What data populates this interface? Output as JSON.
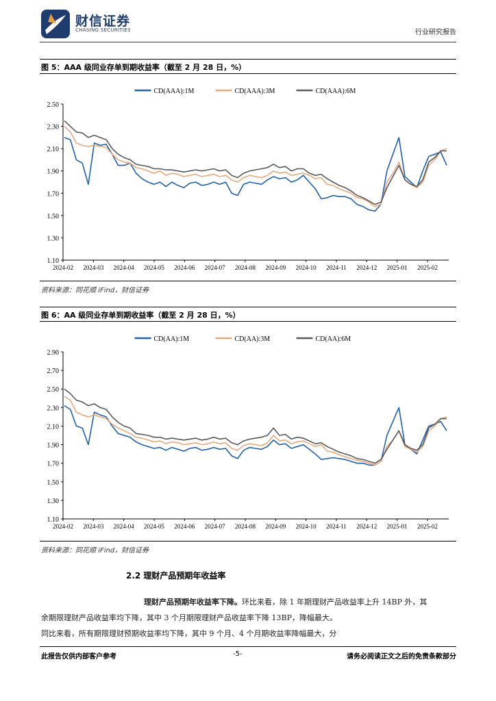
{
  "header": {
    "brand_cn": "财信证券",
    "brand_en": "CHASING SECURITIES",
    "report_type": "行业研究报告"
  },
  "figures": [
    {
      "title": "图 5：AAA 级同业存单到期收益率（截至 2 月 28 日，%）",
      "source": "资料来源：同花顺 iFind，财信证券"
    },
    {
      "title": "图 6：AA 级同业存单到期收益率（截至 2 月 28 日，%）",
      "source": "资料来源：同花顺 iFind，财信证券"
    }
  ],
  "chart_data": [
    {
      "type": "line",
      "title": "AAA 级同业存单到期收益率",
      "x_ticks": [
        "2024-02",
        "2024-03",
        "2024-04",
        "2024-05",
        "2024-06",
        "2024-07",
        "2024-08",
        "2024-09",
        "2024-10",
        "2024-11",
        "2024-12",
        "2025-01",
        "2025-02"
      ],
      "ylim": [
        1.1,
        2.5
      ],
      "y_ticks": [
        "1.10",
        "1.30",
        "1.50",
        "1.70",
        "1.90",
        "2.10",
        "2.30",
        "2.50"
      ],
      "legend_position": "top-center",
      "series": [
        {
          "name": "CD(AAA):1M",
          "color": "#1f5fb0",
          "values": [
            2.2,
            2.18,
            2.0,
            1.97,
            1.78,
            2.15,
            2.13,
            2.14,
            2.05,
            1.95,
            1.95,
            1.97,
            1.88,
            1.83,
            1.8,
            1.78,
            1.8,
            1.76,
            1.8,
            1.77,
            1.75,
            1.79,
            1.8,
            1.77,
            1.78,
            1.8,
            1.78,
            1.8,
            1.7,
            1.68,
            1.78,
            1.8,
            1.79,
            1.78,
            1.82,
            1.85,
            1.83,
            1.84,
            1.8,
            1.82,
            1.86,
            1.8,
            1.74,
            1.65,
            1.66,
            1.68,
            1.67,
            1.67,
            1.65,
            1.6,
            1.58,
            1.55,
            1.54,
            1.6,
            1.9,
            2.05,
            2.2,
            1.85,
            1.8,
            1.75,
            1.9,
            2.03,
            2.05,
            2.07,
            1.95
          ]
        },
        {
          "name": "CD(AAA):3M",
          "color": "#e8a87c",
          "values": [
            2.3,
            2.25,
            2.15,
            2.13,
            2.12,
            2.13,
            2.12,
            2.11,
            2.05,
            2.0,
            1.98,
            1.97,
            1.93,
            1.92,
            1.9,
            1.88,
            1.9,
            1.86,
            1.88,
            1.87,
            1.85,
            1.86,
            1.87,
            1.85,
            1.86,
            1.87,
            1.85,
            1.86,
            1.82,
            1.8,
            1.84,
            1.86,
            1.85,
            1.84,
            1.86,
            1.9,
            1.88,
            1.89,
            1.86,
            1.87,
            1.88,
            1.86,
            1.83,
            1.84,
            1.78,
            1.77,
            1.74,
            1.72,
            1.7,
            1.66,
            1.65,
            1.62,
            1.58,
            1.6,
            1.8,
            1.88,
            1.98,
            1.82,
            1.78,
            1.75,
            1.8,
            1.95,
            2.0,
            2.08,
            2.1
          ]
        },
        {
          "name": "CD(AAA):6M",
          "color": "#595959",
          "values": [
            2.35,
            2.3,
            2.25,
            2.24,
            2.2,
            2.22,
            2.2,
            2.18,
            2.1,
            2.05,
            2.02,
            2.0,
            1.96,
            1.95,
            1.94,
            1.92,
            1.92,
            1.91,
            1.91,
            1.9,
            1.89,
            1.9,
            1.91,
            1.9,
            1.91,
            1.92,
            1.9,
            1.91,
            1.86,
            1.84,
            1.88,
            1.9,
            1.91,
            1.92,
            1.93,
            1.96,
            1.93,
            1.94,
            1.9,
            1.92,
            1.92,
            1.88,
            1.86,
            1.87,
            1.83,
            1.8,
            1.77,
            1.75,
            1.72,
            1.68,
            1.66,
            1.63,
            1.6,
            1.62,
            1.75,
            1.85,
            1.95,
            1.82,
            1.78,
            1.76,
            1.82,
            1.98,
            2.02,
            2.08,
            2.08
          ]
        }
      ]
    },
    {
      "type": "line",
      "title": "AA 级同业存单到期收益率",
      "x_ticks": [
        "2024-02",
        "2024-03",
        "2024-04",
        "2024-05",
        "2024-06",
        "2024-07",
        "2024-08",
        "2024-09",
        "2024-10",
        "2024-11",
        "2024-12",
        "2025-01",
        "2025-02"
      ],
      "ylim": [
        1.1,
        2.9
      ],
      "y_ticks": [
        "1.10",
        "1.30",
        "1.50",
        "1.70",
        "1.90",
        "2.10",
        "2.30",
        "2.50",
        "2.70",
        "2.90"
      ],
      "legend_position": "top-center",
      "series": [
        {
          "name": "CD(AA):1M",
          "color": "#1f5fb0",
          "values": [
            2.32,
            2.28,
            2.1,
            2.08,
            1.9,
            2.25,
            2.22,
            2.2,
            2.1,
            2.02,
            2.0,
            1.98,
            1.93,
            1.9,
            1.88,
            1.86,
            1.87,
            1.84,
            1.87,
            1.85,
            1.83,
            1.86,
            1.87,
            1.84,
            1.85,
            1.87,
            1.85,
            1.86,
            1.78,
            1.75,
            1.84,
            1.87,
            1.86,
            1.85,
            1.88,
            1.95,
            1.9,
            1.91,
            1.86,
            1.88,
            1.9,
            1.85,
            1.8,
            1.74,
            1.75,
            1.76,
            1.75,
            1.74,
            1.72,
            1.7,
            1.7,
            1.68,
            1.68,
            1.72,
            2.0,
            2.15,
            2.3,
            1.9,
            1.85,
            1.8,
            1.95,
            2.1,
            2.12,
            2.15,
            2.05
          ]
        },
        {
          "name": "CD(AA):3M",
          "color": "#e8a87c",
          "values": [
            2.42,
            2.38,
            2.25,
            2.22,
            2.2,
            2.22,
            2.2,
            2.18,
            2.12,
            2.08,
            2.05,
            2.02,
            1.98,
            1.97,
            1.95,
            1.93,
            1.94,
            1.91,
            1.93,
            1.92,
            1.9,
            1.91,
            1.92,
            1.9,
            1.91,
            1.93,
            1.91,
            1.92,
            1.86,
            1.84,
            1.89,
            1.91,
            1.9,
            1.89,
            1.92,
            2.0,
            1.94,
            1.95,
            1.91,
            1.93,
            1.94,
            1.91,
            1.88,
            1.9,
            1.83,
            1.82,
            1.79,
            1.77,
            1.75,
            1.73,
            1.72,
            1.7,
            1.68,
            1.72,
            1.88,
            1.95,
            2.05,
            1.88,
            1.85,
            1.82,
            1.88,
            2.05,
            2.1,
            2.18,
            2.2
          ]
        },
        {
          "name": "CD(AA):6M",
          "color": "#595959",
          "values": [
            2.5,
            2.45,
            2.38,
            2.36,
            2.32,
            2.34,
            2.3,
            2.28,
            2.2,
            2.14,
            2.1,
            2.08,
            2.02,
            2.01,
            2.0,
            1.98,
            1.98,
            1.96,
            1.97,
            1.96,
            1.95,
            1.96,
            1.97,
            1.95,
            1.96,
            1.98,
            1.96,
            1.97,
            1.92,
            1.9,
            1.94,
            1.96,
            1.97,
            1.98,
            2.0,
            2.08,
            2.0,
            2.01,
            1.96,
            1.98,
            1.97,
            1.94,
            1.91,
            1.92,
            1.88,
            1.85,
            1.82,
            1.8,
            1.78,
            1.75,
            1.74,
            1.72,
            1.7,
            1.74,
            1.85,
            1.95,
            2.05,
            1.9,
            1.86,
            1.84,
            1.9,
            2.08,
            2.12,
            2.18,
            2.18
          ]
        }
      ]
    }
  ],
  "section": {
    "title": "2.2 理财产品预期年收益率"
  },
  "paragraph": {
    "lead": "理财产品预期年收益率下降。",
    "line1": "环比来看，除 1 年期理财产品收益率上升 14BP 外，其",
    "line2": "余期限理财产品收益率均下降，其中 3 个月期限理财产品收益率下降 13BP，降幅最大。",
    "line3": "同比来看，所有期限理财预期收益率均下降，其中 9 个月、4 个月期收益率降幅最大，分"
  },
  "footer": {
    "left": "此报告仅供内部客户参考",
    "page": "-5-",
    "right": "请务必阅读正文之后的免责条款部分"
  }
}
